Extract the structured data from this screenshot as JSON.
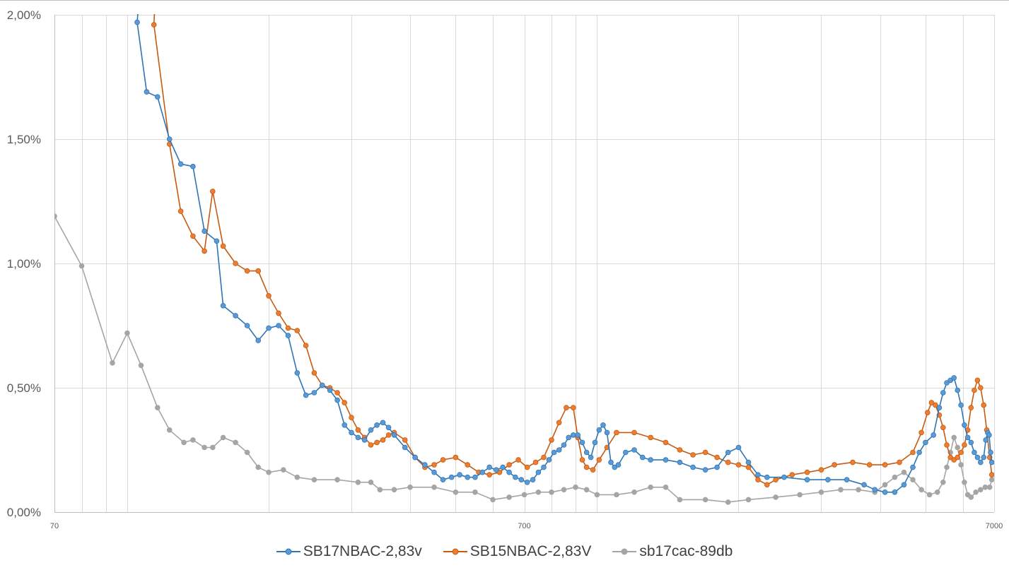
{
  "chart_data": {
    "type": "line",
    "x_scale": "log",
    "xlim": [
      70,
      7000
    ],
    "ylim": [
      0,
      0.02
    ],
    "x_ticks": [
      {
        "value": 70,
        "label": "70"
      },
      {
        "value": 700,
        "label": "700"
      },
      {
        "value": 7000,
        "label": "7000"
      }
    ],
    "y_ticks": [
      {
        "value": 0,
        "label": "0,00%"
      },
      {
        "value": 0.005,
        "label": "0,50%"
      },
      {
        "value": 0.01,
        "label": "1,00%"
      },
      {
        "value": 0.015,
        "label": "1,50%"
      },
      {
        "value": 0.02,
        "label": "2,00%"
      }
    ],
    "grid": {
      "horizontal": true,
      "vertical_log_minor": true
    },
    "legend_position": "bottom",
    "series": [
      {
        "name": "SB17NBAC-2,83v",
        "color": "#2E75B6",
        "marker_fill": "#5B9BD5",
        "points": [
          [
            105,
            0.0197
          ],
          [
            110,
            0.0169
          ],
          [
            116,
            0.0167
          ],
          [
            123,
            0.015
          ],
          [
            130,
            0.014
          ],
          [
            138,
            0.0139
          ],
          [
            146,
            0.0113
          ],
          [
            155,
            0.0109
          ],
          [
            160,
            0.0083
          ],
          [
            170,
            0.0079
          ],
          [
            180,
            0.0075
          ],
          [
            190,
            0.0069
          ],
          [
            200,
            0.0074
          ],
          [
            210,
            0.0075
          ],
          [
            220,
            0.0071
          ],
          [
            230,
            0.0056
          ],
          [
            240,
            0.0047
          ],
          [
            250,
            0.0048
          ],
          [
            260,
            0.0051
          ],
          [
            270,
            0.0049
          ],
          [
            280,
            0.0045
          ],
          [
            290,
            0.0035
          ],
          [
            300,
            0.0032
          ],
          [
            310,
            0.003
          ],
          [
            320,
            0.0029
          ],
          [
            330,
            0.0033
          ],
          [
            340,
            0.0035
          ],
          [
            350,
            0.0036
          ],
          [
            360,
            0.0034
          ],
          [
            370,
            0.0031
          ],
          [
            390,
            0.0026
          ],
          [
            410,
            0.0022
          ],
          [
            430,
            0.0019
          ],
          [
            450,
            0.0016
          ],
          [
            470,
            0.0013
          ],
          [
            490,
            0.0014
          ],
          [
            510,
            0.0015
          ],
          [
            530,
            0.0014
          ],
          [
            550,
            0.0014
          ],
          [
            570,
            0.0016
          ],
          [
            590,
            0.0018
          ],
          [
            610,
            0.0017
          ],
          [
            630,
            0.0018
          ],
          [
            650,
            0.0016
          ],
          [
            670,
            0.0014
          ],
          [
            690,
            0.0013
          ],
          [
            710,
            0.0012
          ],
          [
            730,
            0.0013
          ],
          [
            750,
            0.0016
          ],
          [
            770,
            0.0018
          ],
          [
            790,
            0.0021
          ],
          [
            810,
            0.0024
          ],
          [
            830,
            0.0025
          ],
          [
            850,
            0.0027
          ],
          [
            870,
            0.003
          ],
          [
            890,
            0.0031
          ],
          [
            910,
            0.0031
          ],
          [
            930,
            0.0028
          ],
          [
            950,
            0.0024
          ],
          [
            970,
            0.0022
          ],
          [
            990,
            0.0028
          ],
          [
            1010,
            0.0033
          ],
          [
            1030,
            0.0035
          ],
          [
            1050,
            0.0032
          ],
          [
            1070,
            0.002
          ],
          [
            1090,
            0.0018
          ],
          [
            1110,
            0.0019
          ],
          [
            1150,
            0.0024
          ],
          [
            1200,
            0.0025
          ],
          [
            1250,
            0.0022
          ],
          [
            1300,
            0.0021
          ],
          [
            1400,
            0.0021
          ],
          [
            1500,
            0.002
          ],
          [
            1600,
            0.0018
          ],
          [
            1700,
            0.0017
          ],
          [
            1800,
            0.0018
          ],
          [
            1900,
            0.0024
          ],
          [
            2000,
            0.0026
          ],
          [
            2100,
            0.002
          ],
          [
            2200,
            0.0015
          ],
          [
            2300,
            0.0014
          ],
          [
            2500,
            0.0014
          ],
          [
            2800,
            0.0013
          ],
          [
            3100,
            0.0013
          ],
          [
            3400,
            0.0013
          ],
          [
            3700,
            0.0011
          ],
          [
            3900,
            0.0009
          ],
          [
            4100,
            0.0008
          ],
          [
            4300,
            0.0008
          ],
          [
            4500,
            0.0011
          ],
          [
            4700,
            0.0018
          ],
          [
            4850,
            0.0024
          ],
          [
            5000,
            0.0028
          ],
          [
            5200,
            0.0031
          ],
          [
            5350,
            0.0042
          ],
          [
            5450,
            0.0048
          ],
          [
            5550,
            0.0052
          ],
          [
            5650,
            0.0053
          ],
          [
            5750,
            0.0054
          ],
          [
            5850,
            0.0049
          ],
          [
            5950,
            0.0043
          ],
          [
            6050,
            0.0035
          ],
          [
            6150,
            0.003
          ],
          [
            6250,
            0.0028
          ],
          [
            6350,
            0.0024
          ],
          [
            6450,
            0.0022
          ],
          [
            6550,
            0.002
          ],
          [
            6650,
            0.0022
          ],
          [
            6720,
            0.0029
          ],
          [
            6780,
            0.0032
          ],
          [
            6830,
            0.0031
          ],
          [
            6880,
            0.0024
          ],
          [
            6920,
            0.002
          ]
        ]
      },
      {
        "name": "SB15NBAC-2,83V",
        "color": "#C55A11",
        "marker_fill": "#ED7D31",
        "points": [
          [
            114,
            0.0196
          ],
          [
            123,
            0.0148
          ],
          [
            130,
            0.0121
          ],
          [
            138,
            0.0111
          ],
          [
            146,
            0.0105
          ],
          [
            152,
            0.0129
          ],
          [
            160,
            0.0107
          ],
          [
            170,
            0.01
          ],
          [
            180,
            0.0097
          ],
          [
            190,
            0.0097
          ],
          [
            200,
            0.0087
          ],
          [
            210,
            0.008
          ],
          [
            220,
            0.0074
          ],
          [
            230,
            0.0073
          ],
          [
            240,
            0.0067
          ],
          [
            250,
            0.0056
          ],
          [
            260,
            0.0051
          ],
          [
            270,
            0.005
          ],
          [
            280,
            0.0048
          ],
          [
            290,
            0.0044
          ],
          [
            300,
            0.0038
          ],
          [
            310,
            0.0033
          ],
          [
            320,
            0.003
          ],
          [
            330,
            0.0027
          ],
          [
            340,
            0.0028
          ],
          [
            350,
            0.0029
          ],
          [
            360,
            0.0031
          ],
          [
            370,
            0.0032
          ],
          [
            390,
            0.0029
          ],
          [
            410,
            0.0022
          ],
          [
            430,
            0.0018
          ],
          [
            450,
            0.0019
          ],
          [
            470,
            0.0021
          ],
          [
            500,
            0.0022
          ],
          [
            530,
            0.0019
          ],
          [
            560,
            0.0016
          ],
          [
            590,
            0.0015
          ],
          [
            620,
            0.0016
          ],
          [
            650,
            0.0019
          ],
          [
            680,
            0.0021
          ],
          [
            710,
            0.0018
          ],
          [
            740,
            0.002
          ],
          [
            770,
            0.0022
          ],
          [
            800,
            0.0029
          ],
          [
            830,
            0.0036
          ],
          [
            860,
            0.0042
          ],
          [
            890,
            0.0042
          ],
          [
            910,
            0.003
          ],
          [
            930,
            0.0021
          ],
          [
            950,
            0.0018
          ],
          [
            980,
            0.0017
          ],
          [
            1010,
            0.0021
          ],
          [
            1050,
            0.0026
          ],
          [
            1100,
            0.0032
          ],
          [
            1200,
            0.0032
          ],
          [
            1300,
            0.003
          ],
          [
            1400,
            0.0028
          ],
          [
            1500,
            0.0025
          ],
          [
            1600,
            0.0023
          ],
          [
            1700,
            0.0024
          ],
          [
            1800,
            0.0022
          ],
          [
            1900,
            0.002
          ],
          [
            2000,
            0.0019
          ],
          [
            2100,
            0.0018
          ],
          [
            2200,
            0.0013
          ],
          [
            2300,
            0.0011
          ],
          [
            2400,
            0.0013
          ],
          [
            2600,
            0.0015
          ],
          [
            2800,
            0.0016
          ],
          [
            3000,
            0.0017
          ],
          [
            3200,
            0.0019
          ],
          [
            3500,
            0.002
          ],
          [
            3800,
            0.0019
          ],
          [
            4100,
            0.0019
          ],
          [
            4400,
            0.002
          ],
          [
            4700,
            0.0024
          ],
          [
            4900,
            0.0032
          ],
          [
            5050,
            0.004
          ],
          [
            5150,
            0.0044
          ],
          [
            5250,
            0.0043
          ],
          [
            5350,
            0.0039
          ],
          [
            5450,
            0.0034
          ],
          [
            5550,
            0.0027
          ],
          [
            5650,
            0.0022
          ],
          [
            5750,
            0.0021
          ],
          [
            5850,
            0.0022
          ],
          [
            5950,
            0.0024
          ],
          [
            6050,
            0.0027
          ],
          [
            6150,
            0.0033
          ],
          [
            6250,
            0.0042
          ],
          [
            6350,
            0.0049
          ],
          [
            6450,
            0.0053
          ],
          [
            6550,
            0.005
          ],
          [
            6650,
            0.0043
          ],
          [
            6750,
            0.0033
          ],
          [
            6850,
            0.0022
          ],
          [
            6920,
            0.0015
          ]
        ]
      },
      {
        "name": "sb17cac-89db",
        "color": "#A5A5A5",
        "marker_fill": "#A5A5A5",
        "points": [
          [
            70,
            0.0119
          ],
          [
            80,
            0.0099
          ],
          [
            93,
            0.006
          ],
          [
            100,
            0.0072
          ],
          [
            107,
            0.0059
          ],
          [
            116,
            0.0042
          ],
          [
            123,
            0.0033
          ],
          [
            132,
            0.0028
          ],
          [
            138,
            0.0029
          ],
          [
            146,
            0.0026
          ],
          [
            152,
            0.0026
          ],
          [
            160,
            0.003
          ],
          [
            170,
            0.0028
          ],
          [
            180,
            0.0024
          ],
          [
            190,
            0.0018
          ],
          [
            200,
            0.0016
          ],
          [
            215,
            0.0017
          ],
          [
            230,
            0.0014
          ],
          [
            250,
            0.0013
          ],
          [
            280,
            0.0013
          ],
          [
            310,
            0.0012
          ],
          [
            330,
            0.0012
          ],
          [
            345,
            0.0009
          ],
          [
            370,
            0.0009
          ],
          [
            400,
            0.001
          ],
          [
            450,
            0.001
          ],
          [
            500,
            0.0008
          ],
          [
            550,
            0.0008
          ],
          [
            600,
            0.0005
          ],
          [
            650,
            0.0006
          ],
          [
            700,
            0.0007
          ],
          [
            750,
            0.0008
          ],
          [
            800,
            0.0008
          ],
          [
            850,
            0.0009
          ],
          [
            900,
            0.001
          ],
          [
            950,
            0.0009
          ],
          [
            1000,
            0.0007
          ],
          [
            1100,
            0.0007
          ],
          [
            1200,
            0.0008
          ],
          [
            1300,
            0.001
          ],
          [
            1400,
            0.001
          ],
          [
            1500,
            0.0005
          ],
          [
            1700,
            0.0005
          ],
          [
            1900,
            0.0004
          ],
          [
            2100,
            0.0005
          ],
          [
            2400,
            0.0006
          ],
          [
            2700,
            0.0007
          ],
          [
            3000,
            0.0008
          ],
          [
            3300,
            0.0009
          ],
          [
            3600,
            0.0009
          ],
          [
            3900,
            0.0008
          ],
          [
            4100,
            0.0011
          ],
          [
            4300,
            0.0014
          ],
          [
            4500,
            0.0016
          ],
          [
            4700,
            0.0013
          ],
          [
            4900,
            0.0009
          ],
          [
            5100,
            0.0007
          ],
          [
            5300,
            0.0008
          ],
          [
            5450,
            0.0012
          ],
          [
            5550,
            0.0018
          ],
          [
            5650,
            0.0024
          ],
          [
            5750,
            0.003
          ],
          [
            5850,
            0.0026
          ],
          [
            5950,
            0.0019
          ],
          [
            6050,
            0.0012
          ],
          [
            6150,
            0.0007
          ],
          [
            6250,
            0.0006
          ],
          [
            6400,
            0.0008
          ],
          [
            6550,
            0.0009
          ],
          [
            6700,
            0.001
          ],
          [
            6850,
            0.001
          ],
          [
            6920,
            0.0013
          ]
        ]
      }
    ]
  }
}
